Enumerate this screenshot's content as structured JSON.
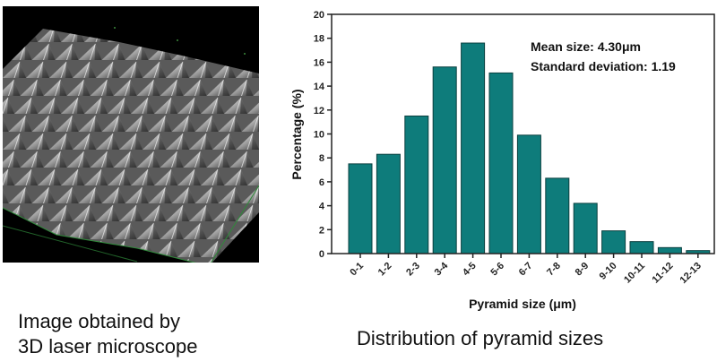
{
  "left_panel": {
    "image_alt": "3D laser microscope surface image of textured pyramids",
    "caption_line1": "Image obtained by",
    "caption_line2": "3D laser microscope"
  },
  "right_panel": {
    "caption": "Distribution of pyramid sizes"
  },
  "colors": {
    "bar_fill": "#0e7c7b",
    "bar_stroke": "#0a3f3f",
    "background": "#ffffff",
    "axis": "#222222"
  },
  "chart_data": {
    "type": "bar",
    "title": "Distribution of pyramid sizes",
    "xlabel": "Pyramid size (μm)",
    "ylabel": "Percentage (%)",
    "ylim": [
      0,
      20
    ],
    "yticks": [
      0,
      2,
      4,
      6,
      8,
      10,
      12,
      14,
      16,
      18,
      20
    ],
    "grid": false,
    "legend": null,
    "categories": [
      "0-1",
      "1-2",
      "2-3",
      "3-4",
      "4-5",
      "5-6",
      "6-7",
      "7-8",
      "8-9",
      "9-10",
      "10-11",
      "11-12",
      "12-13"
    ],
    "values": [
      7.5,
      8.3,
      11.5,
      15.6,
      17.6,
      15.1,
      9.9,
      6.3,
      4.2,
      1.9,
      1.0,
      0.5,
      0.25
    ],
    "annotations": [
      "Mean size:  4.30μm",
      "Standard deviation: 1.19"
    ]
  }
}
